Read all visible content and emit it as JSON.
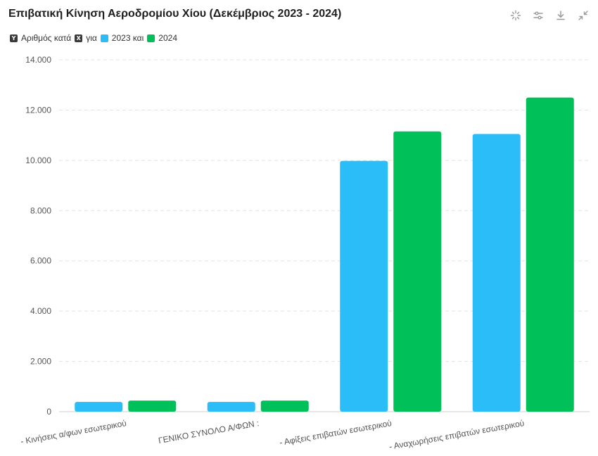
{
  "header": {
    "title": "Επιβατική Κίνηση Αεροδρομίου Χίου (Δεκέμβριος 2023 - 2024)"
  },
  "toolbar": {
    "icons": [
      "zoom-select-icon",
      "settings-sliders-icon",
      "download-icon",
      "collapse-icon"
    ]
  },
  "legend": {
    "filter_items": [
      {
        "badge": "Y",
        "label": "Αριθμός κατά"
      },
      {
        "badge": "X",
        "label": "για"
      }
    ],
    "series_items": [
      {
        "label": "2023 και",
        "color": "#2bbdf8"
      },
      {
        "label": "2024",
        "color": "#00c05a"
      }
    ]
  },
  "chart_data": {
    "type": "bar",
    "categories": [
      "- Κινήσεις α/φων εσωτερικού",
      "ΓΕΝΙΚΟ ΣΥΝΟΛΟ Α/ΦΩΝ :",
      "- Αφίξεις επιβατών εσωτερικού",
      "- Αναχωρήσεις επιβατών εσωτερικού"
    ],
    "series": [
      {
        "name": "2023",
        "color": "#2bbdf8",
        "values": [
          390,
          390,
          9980,
          11050
        ]
      },
      {
        "name": "2024",
        "color": "#00c05a",
        "values": [
          440,
          440,
          11150,
          12500
        ]
      }
    ],
    "ylim": [
      0,
      14000
    ],
    "yticks": [
      "0",
      "2.000",
      "4.000",
      "6.000",
      "8.000",
      "10.000",
      "12.000",
      "14.000"
    ],
    "grid": true,
    "legend_position": "top-left"
  }
}
